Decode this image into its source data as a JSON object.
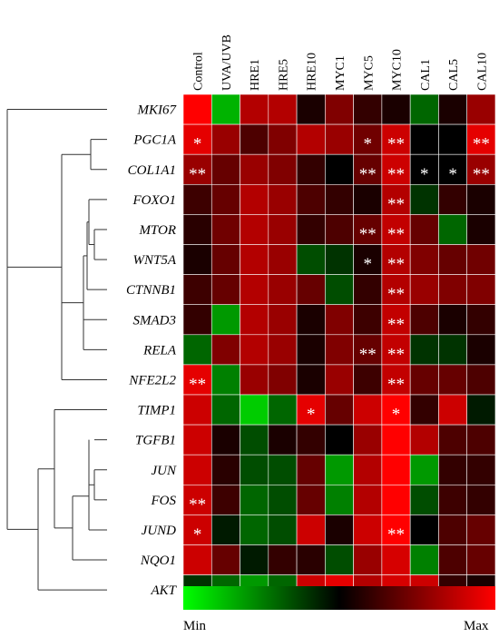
{
  "chart_data": {
    "type": "heatmap",
    "columns": [
      "Control",
      "UVA/UVB",
      "HRE1",
      "HRE5",
      "HRE10",
      "MYC1",
      "MYC5",
      "MYC10",
      "CAL1",
      "CAL5",
      "CAL10"
    ],
    "rows": [
      "MKI67",
      "PGC1A",
      "COL1A1",
      "FOXO1",
      "MTOR",
      "WNT5A",
      "CTNNB1",
      "SMAD3",
      "RELA",
      "NFE2L2",
      "TIMP1",
      "TGFB1",
      "JUN",
      "FOS",
      "JUND",
      "NQO1",
      "AKT"
    ],
    "values": [
      [
        1.0,
        0.15,
        0.85,
        0.85,
        0.55,
        0.75,
        0.6,
        0.55,
        0.3,
        0.55,
        0.8
      ],
      [
        0.95,
        0.8,
        0.65,
        0.75,
        0.85,
        0.8,
        0.72,
        0.9,
        0.5,
        0.5,
        0.95
      ],
      [
        0.8,
        0.7,
        0.8,
        0.75,
        0.6,
        0.5,
        0.7,
        0.9,
        0.5,
        0.5,
        0.8
      ],
      [
        0.62,
        0.7,
        0.85,
        0.8,
        0.65,
        0.6,
        0.55,
        0.85,
        0.4,
        0.6,
        0.55
      ],
      [
        0.58,
        0.72,
        0.85,
        0.8,
        0.6,
        0.65,
        0.7,
        0.88,
        0.7,
        0.3,
        0.55
      ],
      [
        0.55,
        0.7,
        0.85,
        0.8,
        0.35,
        0.4,
        0.55,
        0.85,
        0.75,
        0.7,
        0.72
      ],
      [
        0.62,
        0.7,
        0.85,
        0.8,
        0.7,
        0.35,
        0.6,
        0.85,
        0.8,
        0.75,
        0.75
      ],
      [
        0.6,
        0.2,
        0.85,
        0.8,
        0.55,
        0.75,
        0.62,
        0.88,
        0.65,
        0.55,
        0.6
      ],
      [
        0.3,
        0.75,
        0.85,
        0.8,
        0.55,
        0.75,
        0.7,
        0.88,
        0.4,
        0.4,
        0.55
      ],
      [
        0.95,
        0.25,
        0.8,
        0.75,
        0.55,
        0.8,
        0.62,
        0.88,
        0.7,
        0.7,
        0.65
      ],
      [
        0.9,
        0.3,
        0.1,
        0.3,
        0.95,
        0.7,
        0.9,
        1.0,
        0.6,
        0.9,
        0.45
      ],
      [
        0.9,
        0.55,
        0.35,
        0.55,
        0.6,
        0.5,
        0.8,
        1.0,
        0.85,
        0.65,
        0.65
      ],
      [
        0.9,
        0.58,
        0.35,
        0.35,
        0.7,
        0.2,
        0.85,
        1.0,
        0.2,
        0.6,
        0.6
      ],
      [
        0.9,
        0.62,
        0.3,
        0.35,
        0.7,
        0.25,
        0.85,
        1.0,
        0.35,
        0.62,
        0.6
      ],
      [
        0.9,
        0.45,
        0.3,
        0.35,
        0.9,
        0.55,
        0.9,
        1.0,
        0.5,
        0.65,
        0.7
      ],
      [
        0.9,
        0.7,
        0.45,
        0.6,
        0.58,
        0.35,
        0.8,
        0.92,
        0.25,
        0.65,
        0.7
      ],
      [
        0.4,
        0.3,
        0.2,
        0.3,
        0.9,
        0.95,
        0.85,
        0.92,
        0.9,
        0.6,
        0.55
      ]
    ],
    "significance": [
      [
        "",
        "",
        "",
        "",
        "",
        "",
        "",
        "",
        "",
        "",
        ""
      ],
      [
        "*",
        "",
        "",
        "",
        "",
        "",
        "*",
        "**",
        "",
        "",
        "**"
      ],
      [
        "**",
        "",
        "",
        "",
        "",
        "",
        "**",
        "**",
        "*",
        "*",
        "**"
      ],
      [
        "",
        "",
        "",
        "",
        "",
        "",
        "",
        "**",
        "",
        "",
        ""
      ],
      [
        "",
        "",
        "",
        "",
        "",
        "",
        "**",
        "**",
        "",
        "",
        ""
      ],
      [
        "",
        "",
        "",
        "",
        "",
        "",
        "*",
        "**",
        "",
        "",
        ""
      ],
      [
        "",
        "",
        "",
        "",
        "",
        "",
        "",
        "**",
        "",
        "",
        ""
      ],
      [
        "",
        "",
        "",
        "",
        "",
        "",
        "",
        "**",
        "",
        "",
        ""
      ],
      [
        "",
        "",
        "",
        "",
        "",
        "",
        "**",
        "**",
        "",
        "",
        ""
      ],
      [
        "**",
        "",
        "",
        "",
        "",
        "",
        "",
        "**",
        "",
        "",
        ""
      ],
      [
        "",
        "",
        "",
        "",
        "*",
        "",
        "",
        "*",
        "",
        "",
        ""
      ],
      [
        "",
        "",
        "",
        "",
        "",
        "",
        "",
        "",
        "",
        "",
        ""
      ],
      [
        "",
        "",
        "",
        "",
        "",
        "",
        "",
        "",
        "",
        "",
        ""
      ],
      [
        "**",
        "",
        "",
        "",
        "",
        "",
        "",
        "",
        "",
        "",
        ""
      ],
      [
        "*",
        "",
        "",
        "",
        "",
        "",
        "",
        "**",
        "",
        "",
        ""
      ],
      [
        "",
        "",
        "",
        "",
        "",
        "",
        "",
        "",
        "",
        "",
        ""
      ],
      [
        "",
        "",
        "",
        "",
        "",
        "",
        "",
        "",
        "",
        "",
        ""
      ]
    ],
    "color_scale": {
      "min_color": "#00ff00",
      "mid_color": "#000000",
      "max_color": "#ff0000"
    },
    "scale_min_label": "Min",
    "scale_max_label": "Max",
    "dendrogram": "row clustering tree on the left"
  }
}
